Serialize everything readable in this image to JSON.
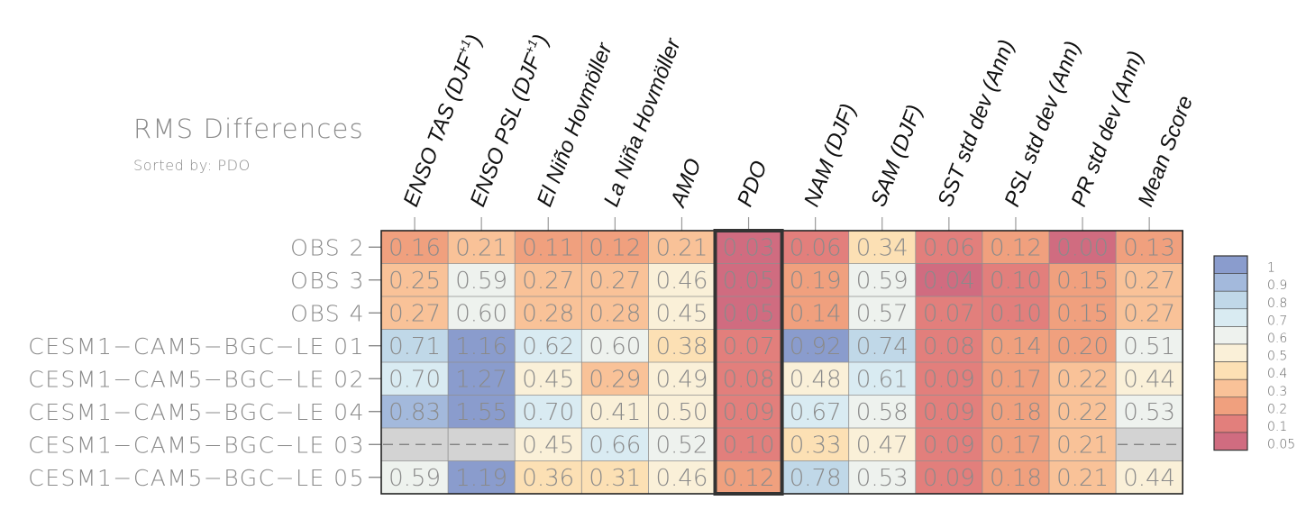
{
  "chart_data": {
    "type": "heatmap",
    "title": "RMS Differences",
    "subtitle": "Sorted by: PDO",
    "columns": [
      "ENSO TAS (DJF+1)",
      "ENSO PSL (DJF+1)",
      "El Niño Hovmöller",
      "La Niña Hovmöller",
      "AMO",
      "PDO",
      "NAM (DJF)",
      "SAM (DJF)",
      "SST std dev (Ann)",
      "PSL std dev (Ann)",
      "PR std dev (Ann)",
      "Mean Score"
    ],
    "rows": [
      "OBS 2",
      "OBS 3",
      "OBS 4",
      "CESM1-CAM5-BGC-LE 01",
      "CESM1-CAM5-BGC-LE 02",
      "CESM1-CAM5-BGC-LE 04",
      "CESM1-CAM5-BGC-LE 03",
      "CESM1-CAM5-BGC-LE 05"
    ],
    "values": [
      [
        0.16,
        0.21,
        0.11,
        0.12,
        0.21,
        0.03,
        0.06,
        0.34,
        0.06,
        0.12,
        0.0,
        0.13
      ],
      [
        0.25,
        0.59,
        0.27,
        0.27,
        0.46,
        0.05,
        0.19,
        0.59,
        0.04,
        0.1,
        0.15,
        0.27
      ],
      [
        0.27,
        0.6,
        0.28,
        0.28,
        0.45,
        0.05,
        0.14,
        0.57,
        0.07,
        0.1,
        0.15,
        0.27
      ],
      [
        0.71,
        1.16,
        0.62,
        0.6,
        0.38,
        0.07,
        0.92,
        0.74,
        0.08,
        0.14,
        0.2,
        0.51
      ],
      [
        0.7,
        1.27,
        0.45,
        0.29,
        0.49,
        0.08,
        0.48,
        0.61,
        0.09,
        0.17,
        0.22,
        0.44
      ],
      [
        0.83,
        1.55,
        0.7,
        0.41,
        0.5,
        0.09,
        0.67,
        0.58,
        0.09,
        0.18,
        0.22,
        0.53
      ],
      [
        null,
        null,
        0.45,
        0.66,
        0.52,
        0.1,
        0.33,
        0.47,
        0.09,
        0.17,
        0.21,
        null
      ],
      [
        0.59,
        1.19,
        0.36,
        0.31,
        0.46,
        0.12,
        0.78,
        0.53,
        0.09,
        0.18,
        0.21,
        0.44
      ]
    ],
    "highlighted_column": "PDO",
    "colorbar": {
      "ticks": [
        "1",
        "0.9",
        "0.8",
        "0.7",
        "0.6",
        "0.5",
        "0.4",
        "0.3",
        "0.2",
        "0.1",
        "0.05"
      ],
      "colors": [
        "#8a9ccd",
        "#a3b9dc",
        "#c0d8e8",
        "#d9ebf2",
        "#eef2ee",
        "#faf0d8",
        "#fce0b4",
        "#f9c298",
        "#f0a07e",
        "#e27f7c",
        "#d06c80"
      ],
      "missing_color": "#d3d3d3"
    }
  }
}
